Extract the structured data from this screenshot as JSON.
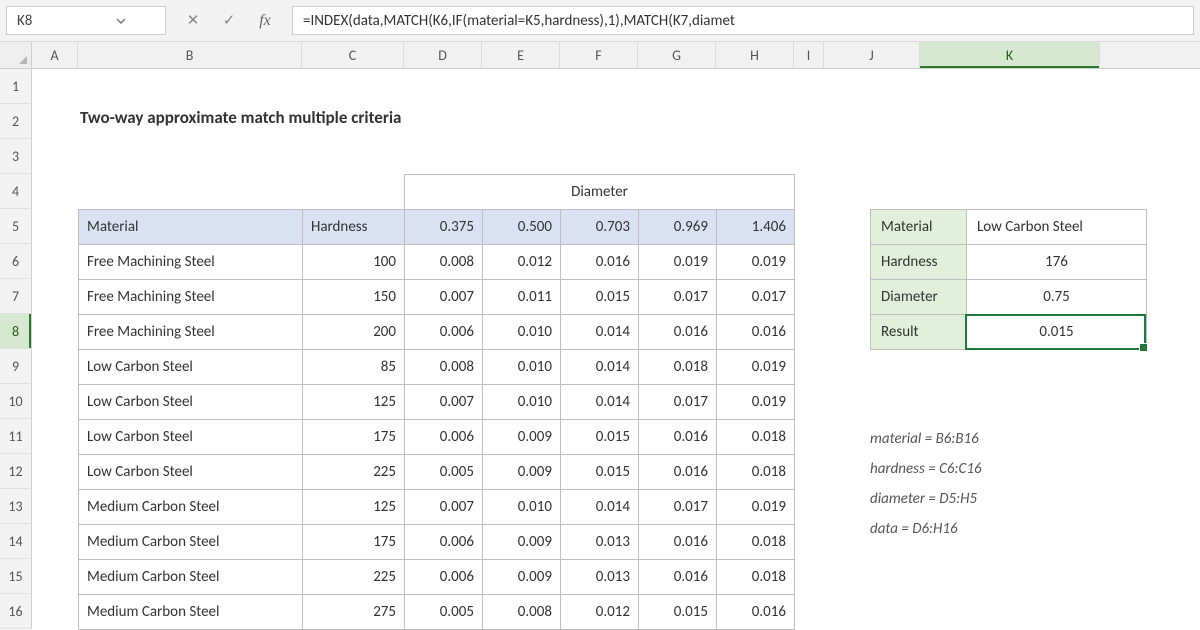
{
  "formula_bar": {
    "active_cell": "K8",
    "formula": "=INDEX(data,MATCH(K6,IF(material=K5,hardness),1),MATCH(K7,diamet"
  },
  "columns": {
    "letters": [
      "A",
      "B",
      "C",
      "D",
      "E",
      "F",
      "G",
      "H",
      "I",
      "J",
      "K"
    ],
    "widths": [
      46,
      224,
      102,
      78,
      78,
      78,
      78,
      78,
      30,
      96,
      180
    ],
    "selected": "K"
  },
  "rows": {
    "numbers": [
      1,
      2,
      3,
      4,
      5,
      6,
      7,
      8,
      9,
      10,
      11,
      12,
      13,
      14,
      15,
      16
    ],
    "height": 35,
    "selected": 8
  },
  "title": "Two-way approximate match multiple criteria",
  "table": {
    "spanner": "Diameter",
    "col_material": "Material",
    "col_hardness": "Hardness",
    "diam_headers": [
      "0.375",
      "0.500",
      "0.703",
      "0.969",
      "1.406"
    ],
    "rows": [
      {
        "mat": "Free Machining Steel",
        "hard": "100",
        "v": [
          "0.008",
          "0.012",
          "0.016",
          "0.019",
          "0.019"
        ]
      },
      {
        "mat": "Free Machining Steel",
        "hard": "150",
        "v": [
          "0.007",
          "0.011",
          "0.015",
          "0.017",
          "0.017"
        ]
      },
      {
        "mat": "Free Machining Steel",
        "hard": "200",
        "v": [
          "0.006",
          "0.010",
          "0.014",
          "0.016",
          "0.016"
        ]
      },
      {
        "mat": "Low Carbon Steel",
        "hard": "85",
        "v": [
          "0.008",
          "0.010",
          "0.014",
          "0.018",
          "0.019"
        ]
      },
      {
        "mat": "Low Carbon Steel",
        "hard": "125",
        "v": [
          "0.007",
          "0.010",
          "0.014",
          "0.017",
          "0.019"
        ]
      },
      {
        "mat": "Low Carbon Steel",
        "hard": "175",
        "v": [
          "0.006",
          "0.009",
          "0.015",
          "0.016",
          "0.018"
        ]
      },
      {
        "mat": "Low Carbon Steel",
        "hard": "225",
        "v": [
          "0.005",
          "0.009",
          "0.015",
          "0.016",
          "0.018"
        ]
      },
      {
        "mat": "Medium Carbon Steel",
        "hard": "125",
        "v": [
          "0.007",
          "0.010",
          "0.014",
          "0.017",
          "0.019"
        ]
      },
      {
        "mat": "Medium Carbon Steel",
        "hard": "175",
        "v": [
          "0.006",
          "0.009",
          "0.013",
          "0.016",
          "0.018"
        ]
      },
      {
        "mat": "Medium Carbon Steel",
        "hard": "225",
        "v": [
          "0.006",
          "0.009",
          "0.013",
          "0.016",
          "0.018"
        ]
      },
      {
        "mat": "Medium Carbon Steel",
        "hard": "275",
        "v": [
          "0.005",
          "0.008",
          "0.012",
          "0.015",
          "0.016"
        ]
      }
    ],
    "col_widths": {
      "B": 224,
      "C": 102,
      "D": 78,
      "E": 78,
      "F": 78,
      "G": 78,
      "H": 78
    }
  },
  "lookup": {
    "labels": {
      "material": "Material",
      "hardness": "Hardness",
      "diameter": "Diameter",
      "result": "Result"
    },
    "values": {
      "material": "Low Carbon Steel",
      "hardness": "176",
      "diameter": "0.75",
      "result": "0.015"
    },
    "col_widths": {
      "J": 96,
      "K": 180
    }
  },
  "named_ranges": [
    "material = B6:B16",
    "hardness = C6:C16",
    "diameter = D5:H5",
    "data = D6:H16"
  ],
  "colors": {
    "header_fill": "#d9e1f2",
    "lookup_label_fill": "#e2efda",
    "selection_green": "#1f7a3b",
    "colrow_sel_fill": "#d7e8d1",
    "grid_border": "#bfbfbf"
  }
}
